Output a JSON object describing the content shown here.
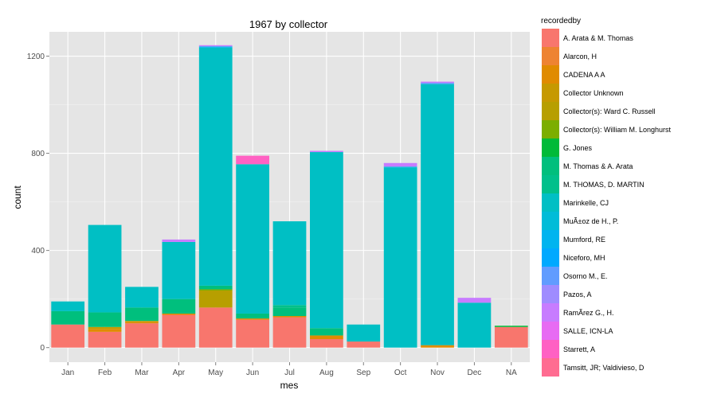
{
  "chart_data": {
    "type": "bar",
    "stacked": true,
    "title": "1967 by collector",
    "xlabel": "mes",
    "ylabel": "count",
    "ylim": [
      0,
      1300
    ],
    "y_ticks": [
      0,
      400,
      800,
      1200
    ],
    "grid": true,
    "legend_position": "right",
    "legend_title": "recordedby",
    "categories": [
      "Jan",
      "Feb",
      "Mar",
      "Apr",
      "May",
      "Jun",
      "Jul",
      "Aug",
      "Sep",
      "Oct",
      "Nov",
      "Dec",
      "NA"
    ],
    "series": [
      {
        "name": "A. Arata & M. Thomas",
        "color": "#F8766D",
        "values": [
          95,
          65,
          100,
          135,
          165,
          115,
          125,
          35,
          25,
          0,
          0,
          0,
          85
        ]
      },
      {
        "name": "Alarcon, H",
        "color": "#EE8332",
        "values": [
          0,
          0,
          0,
          0,
          0,
          0,
          0,
          0,
          0,
          0,
          0,
          0,
          0
        ]
      },
      {
        "name": "CADENA A A",
        "color": "#E08B00",
        "values": [
          0,
          10,
          5,
          5,
          0,
          5,
          5,
          15,
          0,
          0,
          10,
          0,
          0
        ]
      },
      {
        "name": "Collector Unknown",
        "color": "#C69900",
        "values": [
          0,
          10,
          5,
          0,
          0,
          0,
          0,
          0,
          0,
          0,
          0,
          0,
          0
        ]
      },
      {
        "name": "Collector(s): Ward C. Russell",
        "color": "#B79F00",
        "values": [
          0,
          0,
          0,
          0,
          70,
          0,
          0,
          0,
          0,
          0,
          0,
          0,
          0
        ]
      },
      {
        "name": "Collector(s): William M. Longhurst",
        "color": "#7CAE00",
        "values": [
          0,
          0,
          0,
          0,
          5,
          0,
          0,
          0,
          0,
          0,
          0,
          0,
          0
        ]
      },
      {
        "name": "G. Jones",
        "color": "#00BA38",
        "values": [
          0,
          0,
          0,
          0,
          0,
          0,
          0,
          0,
          0,
          0,
          0,
          0,
          5
        ]
      },
      {
        "name": "M. Thomas & A. Arata",
        "color": "#00BF7D",
        "values": [
          55,
          60,
          55,
          60,
          15,
          20,
          35,
          30,
          0,
          0,
          0,
          0,
          0
        ]
      },
      {
        "name": "M. THOMAS, D. MARTIN",
        "color": "#00C08B",
        "values": [
          0,
          0,
          0,
          0,
          0,
          0,
          10,
          0,
          0,
          0,
          0,
          0,
          0
        ]
      },
      {
        "name": "Marinkelle, CJ",
        "color": "#00BFC4",
        "values": [
          40,
          360,
          85,
          235,
          980,
          615,
          345,
          725,
          70,
          740,
          1075,
          185,
          0
        ]
      },
      {
        "name": "MuÃ±oz de H., P.",
        "color": "#00BCD8",
        "values": [
          0,
          0,
          0,
          0,
          0,
          0,
          0,
          0,
          0,
          5,
          0,
          0,
          0
        ]
      },
      {
        "name": "Mumford, RE",
        "color": "#00B4EF",
        "values": [
          0,
          0,
          0,
          0,
          5,
          0,
          0,
          0,
          0,
          0,
          0,
          0,
          0
        ]
      },
      {
        "name": "Niceforo, MH",
        "color": "#00A9FF",
        "values": [
          0,
          0,
          0,
          0,
          0,
          0,
          0,
          0,
          0,
          0,
          0,
          0,
          0
        ]
      },
      {
        "name": "Osorno M., E.",
        "color": "#619CFF",
        "values": [
          0,
          0,
          0,
          0,
          0,
          0,
          0,
          0,
          0,
          0,
          5,
          0,
          0
        ]
      },
      {
        "name": "Pazos, A",
        "color": "#9F8CFF",
        "values": [
          0,
          0,
          0,
          0,
          0,
          0,
          0,
          0,
          0,
          0,
          0,
          0,
          0
        ]
      },
      {
        "name": "RamÃ­rez G., H.",
        "color": "#C77CFF",
        "values": [
          0,
          0,
          0,
          10,
          5,
          0,
          0,
          5,
          0,
          15,
          5,
          20,
          0
        ]
      },
      {
        "name": "SALLE, ICN-LA",
        "color": "#E76BF3",
        "values": [
          0,
          0,
          0,
          0,
          0,
          0,
          0,
          0,
          0,
          0,
          0,
          0,
          0
        ]
      },
      {
        "name": "Starrett, A",
        "color": "#FF61C3",
        "values": [
          0,
          0,
          0,
          0,
          0,
          35,
          0,
          0,
          0,
          0,
          0,
          0,
          0
        ]
      },
      {
        "name": "Tamsitt, JR; Valdivieso, D",
        "color": "#FF6C91",
        "values": [
          0,
          0,
          0,
          0,
          0,
          0,
          0,
          0,
          0,
          0,
          0,
          0,
          0
        ]
      }
    ]
  }
}
